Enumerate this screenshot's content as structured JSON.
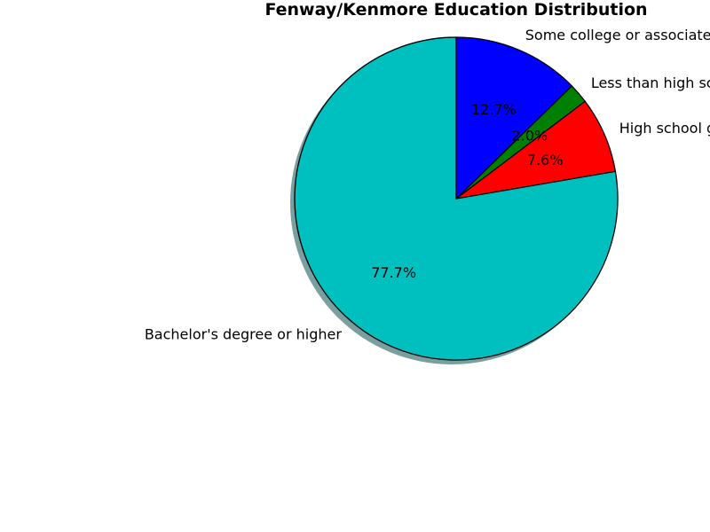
{
  "chart_data": {
    "type": "pie",
    "title": "Fenway/Kenmore Education Distribution",
    "slices": [
      {
        "label": "Bachelor's degree or higher",
        "value": 77.7,
        "pct_label": "77.7%",
        "color": "#00bfbf"
      },
      {
        "label": "High school graduate",
        "value": 7.6,
        "pct_label": "7.6%",
        "color": "#ff0000"
      },
      {
        "label": "Less than high school graduate",
        "value": 2.0,
        "pct_label": "2.0%",
        "color": "#008000"
      },
      {
        "label": "Some college or associate's degree",
        "value": 12.7,
        "pct_label": "12.7%",
        "color": "#0000ff"
      }
    ],
    "start_angle_deg": 90,
    "direction": "counterclockwise",
    "shadow": true,
    "edge_color": "#000000",
    "legend": "none"
  }
}
